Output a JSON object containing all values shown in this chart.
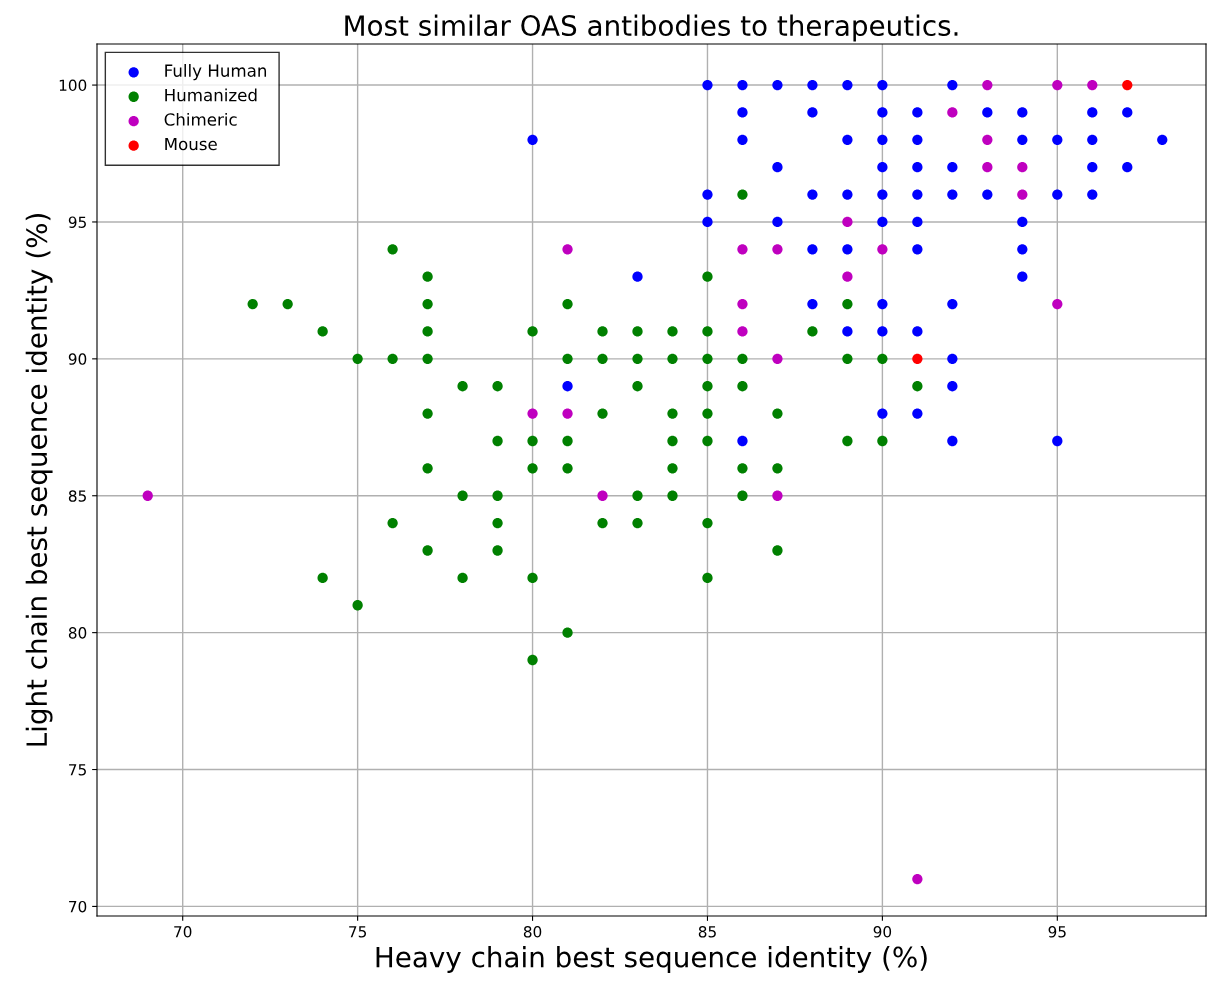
{
  "chart_data": {
    "type": "scatter",
    "title": "Most similar OAS antibodies to therapeutics.",
    "xlabel": "Heavy chain best sequence identity (%)",
    "ylabel": "Light chain best sequence identity (%)",
    "xlim": [
      67.55,
      99.25
    ],
    "ylim": [
      69.65,
      101.5
    ],
    "xticks": [
      70,
      75,
      80,
      85,
      90,
      95
    ],
    "yticks": [
      70,
      75,
      80,
      85,
      90,
      95,
      100
    ],
    "grid": true,
    "legend": "top left",
    "marker": "circle",
    "series": [
      {
        "name": "Fully Human",
        "color": "#0000ff",
        "x": [
          80,
          81,
          83,
          86,
          95,
          85,
          86,
          87,
          88,
          89,
          90,
          92,
          86,
          88,
          90,
          91,
          93,
          94,
          96,
          97,
          86,
          89,
          90,
          91,
          94,
          95,
          96,
          98,
          87,
          90,
          91,
          92,
          96,
          97,
          85,
          88,
          89,
          90,
          91,
          92,
          93,
          95,
          96,
          85,
          87,
          90,
          91,
          94,
          88,
          89,
          91,
          94,
          94,
          88,
          90,
          92,
          89,
          90,
          91,
          92,
          92,
          90,
          91,
          92
        ],
        "values": [
          98,
          89,
          93,
          87,
          87,
          100,
          100,
          100,
          100,
          100,
          100,
          100,
          99,
          99,
          99,
          99,
          99,
          99,
          99,
          99,
          98,
          98,
          98,
          98,
          98,
          98,
          98,
          98,
          97,
          97,
          97,
          97,
          97,
          97,
          96,
          96,
          96,
          96,
          96,
          96,
          96,
          96,
          96,
          95,
          95,
          95,
          95,
          95,
          94,
          94,
          94,
          94,
          93,
          92,
          92,
          92,
          91,
          91,
          91,
          90,
          89,
          88,
          88,
          87
        ]
      },
      {
        "name": "Humanized",
        "color": "#008000",
        "x": [
          72,
          73,
          74,
          74,
          75,
          75,
          76,
          76,
          76,
          77,
          77,
          77,
          77,
          77,
          77,
          77,
          78,
          78,
          78,
          79,
          79,
          79,
          79,
          79,
          80,
          80,
          80,
          80,
          80,
          81,
          81,
          81,
          81,
          81,
          82,
          82,
          82,
          82,
          83,
          83,
          83,
          83,
          83,
          84,
          84,
          84,
          84,
          84,
          84,
          85,
          85,
          85,
          85,
          85,
          85,
          85,
          85,
          86,
          86,
          86,
          86,
          86,
          87,
          87,
          87,
          88,
          89,
          89,
          89,
          90,
          90,
          91
        ],
        "values": [
          92,
          92,
          91,
          82,
          90,
          81,
          94,
          90,
          84,
          93,
          92,
          91,
          90,
          88,
          86,
          83,
          89,
          85,
          82,
          89,
          87,
          85,
          84,
          83,
          91,
          87,
          86,
          82,
          79,
          92,
          90,
          87,
          86,
          80,
          91,
          90,
          88,
          84,
          91,
          90,
          89,
          85,
          84,
          91,
          90,
          88,
          87,
          86,
          85,
          93,
          91,
          90,
          89,
          88,
          87,
          84,
          82,
          96,
          90,
          89,
          86,
          85,
          88,
          86,
          83,
          91,
          92,
          90,
          87,
          90,
          87,
          89
        ]
      },
      {
        "name": "Chimeric",
        "color": "#bf00bf",
        "x": [
          69,
          80,
          81,
          81,
          82,
          86,
          86,
          86,
          87,
          87,
          87,
          89,
          89,
          90,
          91,
          92,
          93,
          93,
          93,
          94,
          94,
          95,
          95,
          96
        ],
        "values": [
          85,
          88,
          94,
          88,
          85,
          94,
          92,
          91,
          94,
          90,
          85,
          95,
          93,
          94,
          71,
          99,
          100,
          98,
          97,
          97,
          96,
          100,
          92,
          100
        ]
      },
      {
        "name": "Mouse",
        "color": "#ff0000",
        "x": [
          91,
          97
        ],
        "values": [
          90,
          100
        ]
      }
    ]
  }
}
